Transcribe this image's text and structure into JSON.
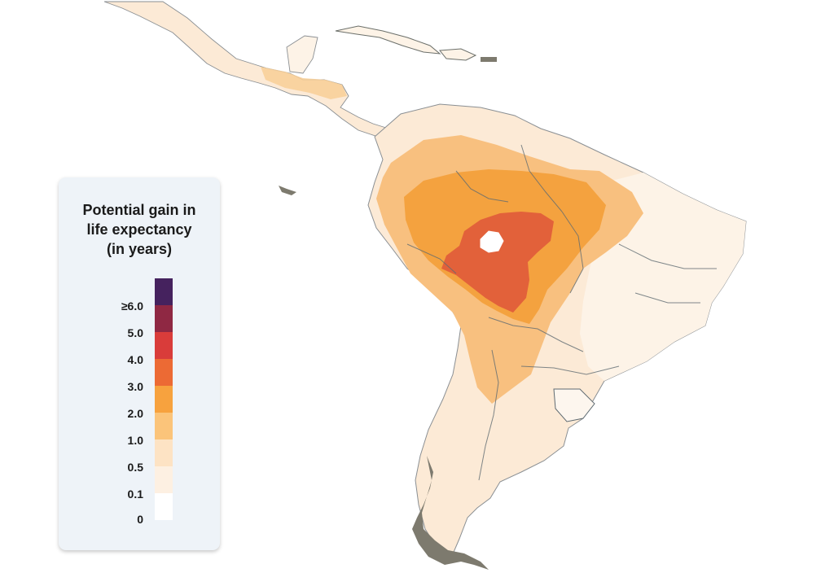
{
  "legend": {
    "title_lines": [
      "Potential gain in",
      "life expectancy",
      "(in years)"
    ],
    "ticks": [
      "≥6.0",
      "5.0",
      "4.0",
      "3.0",
      "2.0",
      "1.0",
      "0.5",
      "0.1",
      "0"
    ],
    "colors": [
      "#45225e",
      "#8f2843",
      "#d93c3a",
      "#ec6a34",
      "#f7a23e",
      "#fbc47a",
      "#fde3c4",
      "#fdf0e2",
      "#ffffff"
    ]
  },
  "colors": {
    "land_base": "#fcead6",
    "land_light": "#fdf3e7",
    "mid": "#f8c07f",
    "high": "#f4a23f",
    "very_high": "#e2613a",
    "border": "#5f6b72",
    "coast_dark": "#7d7a6e"
  }
}
